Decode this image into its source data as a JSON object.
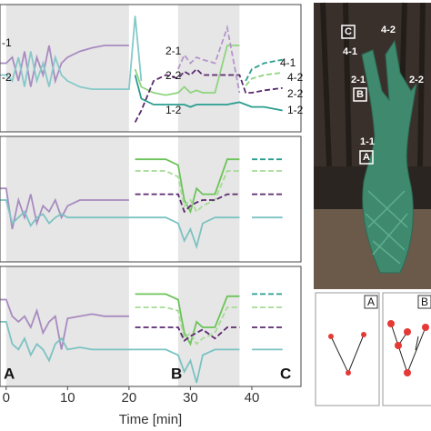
{
  "chart_data": [
    {
      "type": "line",
      "xlim": [
        -1,
        48
      ],
      "ylim": [
        0,
        100
      ],
      "shaded_spans": [
        [
          0,
          20
        ],
        [
          28,
          38
        ]
      ],
      "x": [
        -1,
        0,
        1,
        2,
        3,
        4,
        5,
        6,
        7,
        8,
        9,
        10,
        12,
        14,
        16,
        18,
        20,
        21,
        22,
        24,
        26,
        28,
        29,
        30,
        31,
        32,
        34,
        36,
        38,
        39,
        40,
        42,
        45
      ],
      "annotations": [
        "-1",
        "-2",
        "2-1",
        "2-2",
        "1-2",
        "4-1",
        "4-2",
        "2-2",
        "1-2"
      ],
      "series": [
        {
          "color": "#a88bc0",
          "dashed": false,
          "values": [
            55,
            55,
            60,
            40,
            65,
            35,
            60,
            45,
            70,
            40,
            55,
            60,
            65,
            68,
            70,
            70,
            70,
            null,
            null,
            null,
            null,
            null,
            null,
            null,
            null,
            null,
            null,
            null,
            null,
            null,
            null,
            null,
            null
          ]
        },
        {
          "color": "#86c9c9",
          "dashed": false,
          "values": [
            45,
            45,
            40,
            60,
            35,
            65,
            40,
            55,
            35,
            60,
            45,
            40,
            35,
            33,
            33,
            33,
            33,
            95,
            40,
            null,
            null,
            null,
            null,
            null,
            null,
            null,
            null,
            null,
            null,
            null,
            null,
            null,
            null
          ]
        },
        {
          "color": "#2a9d8f",
          "dashed": false,
          "values": [
            null,
            null,
            null,
            null,
            null,
            null,
            null,
            null,
            null,
            null,
            null,
            null,
            null,
            null,
            null,
            null,
            null,
            45,
            25,
            20,
            20,
            20,
            20,
            18,
            20,
            20,
            20,
            20,
            22,
            20,
            18,
            18,
            15
          ]
        },
        {
          "color": "#8fd47f",
          "dashed": false,
          "values": [
            null,
            null,
            null,
            null,
            null,
            null,
            null,
            null,
            null,
            null,
            null,
            null,
            null,
            null,
            null,
            null,
            null,
            50,
            35,
            30,
            28,
            30,
            35,
            30,
            32,
            30,
            30,
            70,
            70,
            null,
            null,
            null,
            null
          ]
        },
        {
          "color": "#5b2a6e",
          "dashed": true,
          "values": [
            null,
            null,
            null,
            null,
            null,
            null,
            null,
            null,
            null,
            null,
            null,
            null,
            null,
            null,
            null,
            null,
            null,
            5,
            15,
            40,
            45,
            42,
            48,
            45,
            50,
            45,
            45,
            45,
            45,
            30,
            30,
            32,
            34
          ]
        },
        {
          "color": "#b596c9",
          "dashed": true,
          "values": [
            null,
            null,
            null,
            null,
            null,
            null,
            null,
            null,
            null,
            null,
            null,
            null,
            null,
            null,
            null,
            null,
            null,
            null,
            null,
            null,
            null,
            50,
            62,
            55,
            60,
            58,
            55,
            85,
            30,
            null,
            null,
            null,
            null
          ]
        },
        {
          "color": "#2a9d8f",
          "dashed": true,
          "values": [
            null,
            null,
            null,
            null,
            null,
            null,
            null,
            null,
            null,
            null,
            null,
            null,
            null,
            null,
            null,
            null,
            null,
            null,
            null,
            null,
            null,
            null,
            null,
            null,
            null,
            null,
            null,
            null,
            null,
            40,
            50,
            55,
            58
          ]
        },
        {
          "color": "#8fd47f",
          "dashed": true,
          "values": [
            null,
            null,
            null,
            null,
            null,
            null,
            null,
            null,
            null,
            null,
            null,
            null,
            null,
            null,
            null,
            null,
            null,
            null,
            null,
            null,
            null,
            null,
            null,
            null,
            null,
            null,
            null,
            null,
            null,
            36,
            42,
            45,
            47
          ]
        }
      ]
    },
    {
      "type": "line",
      "xlim": [
        -1,
        48
      ],
      "ylim": [
        0,
        100
      ],
      "shaded_spans": [
        [
          0,
          20
        ],
        [
          28,
          38
        ]
      ],
      "x": [
        -1,
        0,
        1,
        2,
        3,
        4,
        5,
        6,
        7,
        8,
        9,
        10,
        12,
        14,
        16,
        18,
        20,
        21,
        22,
        24,
        26,
        28,
        29,
        30,
        31,
        32,
        34,
        36,
        38,
        39,
        40,
        42,
        45
      ],
      "series": [
        {
          "color": "#a88bc0",
          "dashed": false,
          "values": [
            60,
            60,
            25,
            50,
            35,
            55,
            30,
            45,
            40,
            50,
            35,
            45,
            50,
            50,
            50,
            50,
            50,
            null,
            null,
            null,
            null,
            null,
            null,
            null,
            null,
            null,
            null,
            null,
            null,
            null,
            null,
            null,
            null
          ]
        },
        {
          "color": "#7cc2c2",
          "dashed": false,
          "values": [
            50,
            50,
            30,
            35,
            40,
            28,
            35,
            38,
            30,
            35,
            38,
            35,
            35,
            35,
            35,
            35,
            35,
            35,
            35,
            35,
            35,
            30,
            15,
            25,
            10,
            30,
            35,
            35,
            35,
            null,
            35,
            35,
            35
          ]
        },
        {
          "color": "#6cc35a",
          "dashed": false,
          "values": [
            null,
            null,
            null,
            null,
            null,
            null,
            null,
            null,
            null,
            null,
            null,
            null,
            null,
            null,
            null,
            null,
            null,
            85,
            85,
            85,
            85,
            80,
            50,
            40,
            60,
            55,
            55,
            85,
            85,
            null,
            null,
            null,
            null
          ]
        },
        {
          "color": "#a5dc95",
          "dashed": true,
          "values": [
            null,
            null,
            null,
            null,
            null,
            null,
            null,
            null,
            null,
            null,
            null,
            null,
            null,
            null,
            null,
            null,
            null,
            75,
            75,
            75,
            75,
            70,
            45,
            50,
            40,
            45,
            50,
            75,
            75,
            null,
            75,
            75,
            75
          ]
        },
        {
          "color": "#5b2a6e",
          "dashed": true,
          "values": [
            null,
            null,
            null,
            null,
            null,
            null,
            null,
            null,
            null,
            null,
            null,
            null,
            null,
            null,
            null,
            null,
            null,
            55,
            55,
            55,
            55,
            55,
            40,
            45,
            48,
            50,
            50,
            55,
            55,
            null,
            55,
            55,
            55
          ]
        },
        {
          "color": "#2a9d8f",
          "dashed": true,
          "values": [
            null,
            null,
            null,
            null,
            null,
            null,
            null,
            null,
            null,
            null,
            null,
            null,
            null,
            null,
            null,
            null,
            null,
            null,
            null,
            null,
            null,
            null,
            null,
            null,
            null,
            null,
            null,
            null,
            null,
            null,
            85,
            85,
            85
          ]
        }
      ]
    },
    {
      "type": "line",
      "xlim": [
        -1,
        48
      ],
      "ylim": [
        0,
        100
      ],
      "shaded_spans": [
        [
          0,
          20
        ],
        [
          28,
          38
        ]
      ],
      "x": [
        -1,
        0,
        1,
        2,
        3,
        4,
        5,
        6,
        7,
        8,
        9,
        10,
        12,
        14,
        16,
        18,
        20,
        21,
        22,
        24,
        26,
        28,
        29,
        30,
        31,
        32,
        34,
        36,
        38,
        39,
        40,
        42,
        45
      ],
      "xticks": [
        0,
        10,
        20,
        30,
        40
      ],
      "xlabel": "Time [min]",
      "annotations": [
        "A",
        "B",
        "C"
      ],
      "series": [
        {
          "color": "#a88bc0",
          "dashed": false,
          "values": [
            75,
            75,
            60,
            55,
            60,
            50,
            65,
            45,
            55,
            60,
            30,
            58,
            60,
            62,
            60,
            60,
            60,
            null,
            null,
            null,
            null,
            null,
            null,
            null,
            null,
            null,
            null,
            null,
            null,
            null,
            null,
            null,
            null
          ]
        },
        {
          "color": "#7cc2c2",
          "dashed": false,
          "values": [
            55,
            55,
            35,
            30,
            40,
            25,
            35,
            30,
            20,
            35,
            40,
            30,
            32,
            30,
            30,
            30,
            30,
            30,
            30,
            30,
            30,
            25,
            10,
            20,
            0,
            25,
            30,
            30,
            30,
            null,
            30,
            30,
            30
          ]
        },
        {
          "color": "#6cc35a",
          "dashed": false,
          "values": [
            null,
            null,
            null,
            null,
            null,
            null,
            null,
            null,
            null,
            null,
            null,
            null,
            null,
            null,
            null,
            null,
            null,
            80,
            80,
            80,
            80,
            75,
            45,
            35,
            55,
            50,
            50,
            78,
            78,
            null,
            null,
            null,
            null
          ]
        },
        {
          "color": "#a5dc95",
          "dashed": true,
          "values": [
            null,
            null,
            null,
            null,
            null,
            null,
            null,
            null,
            null,
            null,
            null,
            null,
            null,
            null,
            null,
            null,
            null,
            68,
            68,
            68,
            68,
            65,
            40,
            45,
            35,
            40,
            45,
            68,
            68,
            null,
            68,
            68,
            68
          ]
        },
        {
          "color": "#5b2a6e",
          "dashed": true,
          "values": [
            null,
            null,
            null,
            null,
            null,
            null,
            null,
            null,
            null,
            null,
            null,
            null,
            null,
            null,
            null,
            null,
            null,
            50,
            50,
            50,
            50,
            50,
            38,
            42,
            45,
            48,
            40,
            50,
            50,
            null,
            50,
            50,
            50
          ]
        },
        {
          "color": "#2a9d8f",
          "dashed": true,
          "values": [
            null,
            null,
            null,
            null,
            null,
            null,
            null,
            null,
            null,
            null,
            null,
            null,
            null,
            null,
            null,
            null,
            null,
            null,
            null,
            null,
            null,
            null,
            null,
            null,
            null,
            null,
            null,
            null,
            null,
            null,
            80,
            80,
            80
          ]
        }
      ]
    }
  ],
  "photo": {
    "labels": [
      "C",
      "4-2",
      "4-1",
      "2-1",
      "B",
      "2-2",
      "1-1",
      "A"
    ]
  },
  "insets": {
    "labels": [
      "A",
      "B"
    ]
  }
}
